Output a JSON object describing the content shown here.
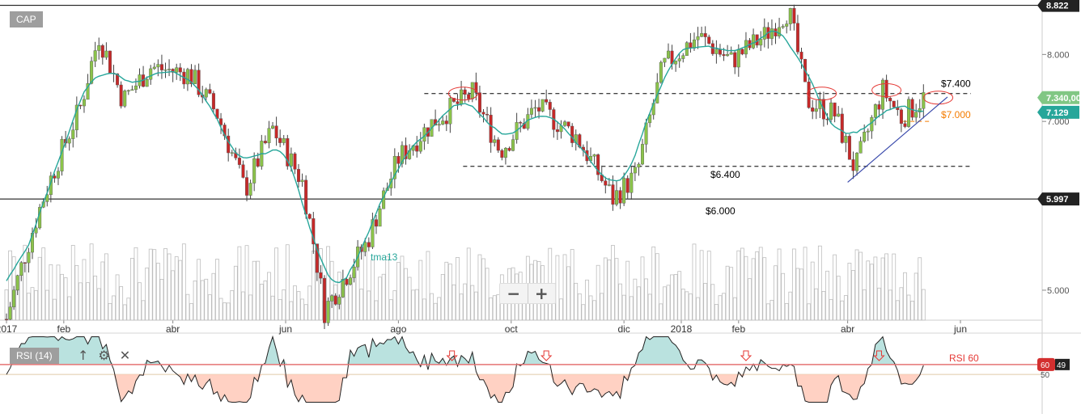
{
  "symbol": "CAP",
  "rsi_label": "RSI (14)",
  "zoom": {
    "minus": "−",
    "plus": "+"
  },
  "rsi_tools": {
    "up_icon": "arrow-up-icon",
    "gear_icon": "gear-icon",
    "close_icon": "close-icon"
  },
  "chart_data": {
    "type": "candlestick",
    "symbol": "CAP",
    "x_tick_labels": [
      "2017",
      "feb",
      "abr",
      "jun",
      "ago",
      "oct",
      "dic",
      "2018",
      "feb",
      "abr",
      "jun"
    ],
    "x_tick_dates": [
      "2017-01-01",
      "2017-02-01",
      "2017-04-01",
      "2017-06-01",
      "2017-08-01",
      "2017-10-01",
      "2017-12-01",
      "2018-01-01",
      "2018-02-01",
      "2018-04-01",
      "2018-06-01"
    ],
    "y_tick_labels": [
      "8.000",
      "7.000",
      "5.000"
    ],
    "ylim": [
      4.71,
      8.86
    ],
    "y_scale": "log",
    "series": [
      {
        "name": "tma13",
        "type": "line",
        "color": "#26a69a"
      },
      {
        "name": "volume",
        "type": "bar"
      }
    ],
    "price_labels": {
      "high": "8.822",
      "last_green": "7.340,00",
      "last_teal": "7.129",
      "support": "5.997"
    },
    "horizontal_levels": [
      {
        "label": "$7.400",
        "value": 7.4,
        "style": "dashed",
        "color": "#000000"
      },
      {
        "label": "$7.000",
        "value": 7.0,
        "style": "dashed",
        "color": "#f57c00"
      },
      {
        "label": "$6.400",
        "value": 6.4,
        "style": "dashed",
        "color": "#000000"
      },
      {
        "label": "$6.000",
        "value": 5.997,
        "style": "solid",
        "color": "#000000"
      },
      {
        "label": "",
        "value": 8.822,
        "style": "solid",
        "color": "#000000"
      }
    ],
    "ohlc_waypoints": [
      {
        "date": "2017-01-01",
        "close": 4.72
      },
      {
        "date": "2017-01-20",
        "close": 5.95
      },
      {
        "date": "2017-02-10",
        "close": 7.2
      },
      {
        "date": "2017-02-20",
        "close": 8.3
      },
      {
        "date": "2017-03-05",
        "close": 7.3
      },
      {
        "date": "2017-03-20",
        "close": 7.8
      },
      {
        "date": "2017-04-10",
        "close": 7.7
      },
      {
        "date": "2017-04-25",
        "close": 7.1
      },
      {
        "date": "2017-05-10",
        "close": 6.1
      },
      {
        "date": "2017-05-25",
        "close": 6.9
      },
      {
        "date": "2017-06-10",
        "close": 6.2
      },
      {
        "date": "2017-06-22",
        "close": 4.8
      },
      {
        "date": "2017-07-15",
        "close": 5.5
      },
      {
        "date": "2017-08-01",
        "close": 6.5
      },
      {
        "date": "2017-08-20",
        "close": 7.0
      },
      {
        "date": "2017-09-10",
        "close": 7.4
      },
      {
        "date": "2017-09-25",
        "close": 6.6
      },
      {
        "date": "2017-10-15",
        "close": 7.2
      },
      {
        "date": "2017-11-05",
        "close": 6.8
      },
      {
        "date": "2017-11-25",
        "close": 6.0
      },
      {
        "date": "2017-12-08",
        "close": 6.3
      },
      {
        "date": "2017-12-22",
        "close": 7.8
      },
      {
        "date": "2018-01-10",
        "close": 8.3
      },
      {
        "date": "2018-01-28",
        "close": 7.9
      },
      {
        "date": "2018-02-15",
        "close": 8.3
      },
      {
        "date": "2018-02-28",
        "close": 8.75
      },
      {
        "date": "2018-03-10",
        "close": 7.3
      },
      {
        "date": "2018-03-25",
        "close": 7.1
      },
      {
        "date": "2018-04-05",
        "close": 6.35
      },
      {
        "date": "2018-04-20",
        "close": 7.45
      },
      {
        "date": "2018-04-30",
        "close": 7.05
      },
      {
        "date": "2018-05-12",
        "close": 7.34
      }
    ],
    "rsi": {
      "name": "RSI (14)",
      "threshold_label": "RSI 60",
      "threshold": 60,
      "mid": 50,
      "y_tick_labels": [
        "60",
        "50",
        "49"
      ],
      "last": 49
    },
    "annotations": [
      {
        "type": "ellipse",
        "date": "2017-09-05",
        "value": 7.4
      },
      {
        "type": "ellipse",
        "date": "2018-03-18",
        "value": 7.4
      },
      {
        "type": "ellipse",
        "date": "2018-04-22",
        "value": 7.45
      },
      {
        "type": "ellipse",
        "date": "2018-05-20",
        "value": 7.34
      },
      {
        "type": "trendline",
        "from": {
          "date": "2018-04-01",
          "value": 6.2
        },
        "to": {
          "date": "2018-05-25",
          "value": 7.35
        },
        "color": "#3949ab"
      },
      {
        "type": "rsi-arrow-down",
        "dates": [
          "2017-08-30",
          "2017-10-20",
          "2018-02-05",
          "2018-04-18"
        ]
      }
    ]
  }
}
